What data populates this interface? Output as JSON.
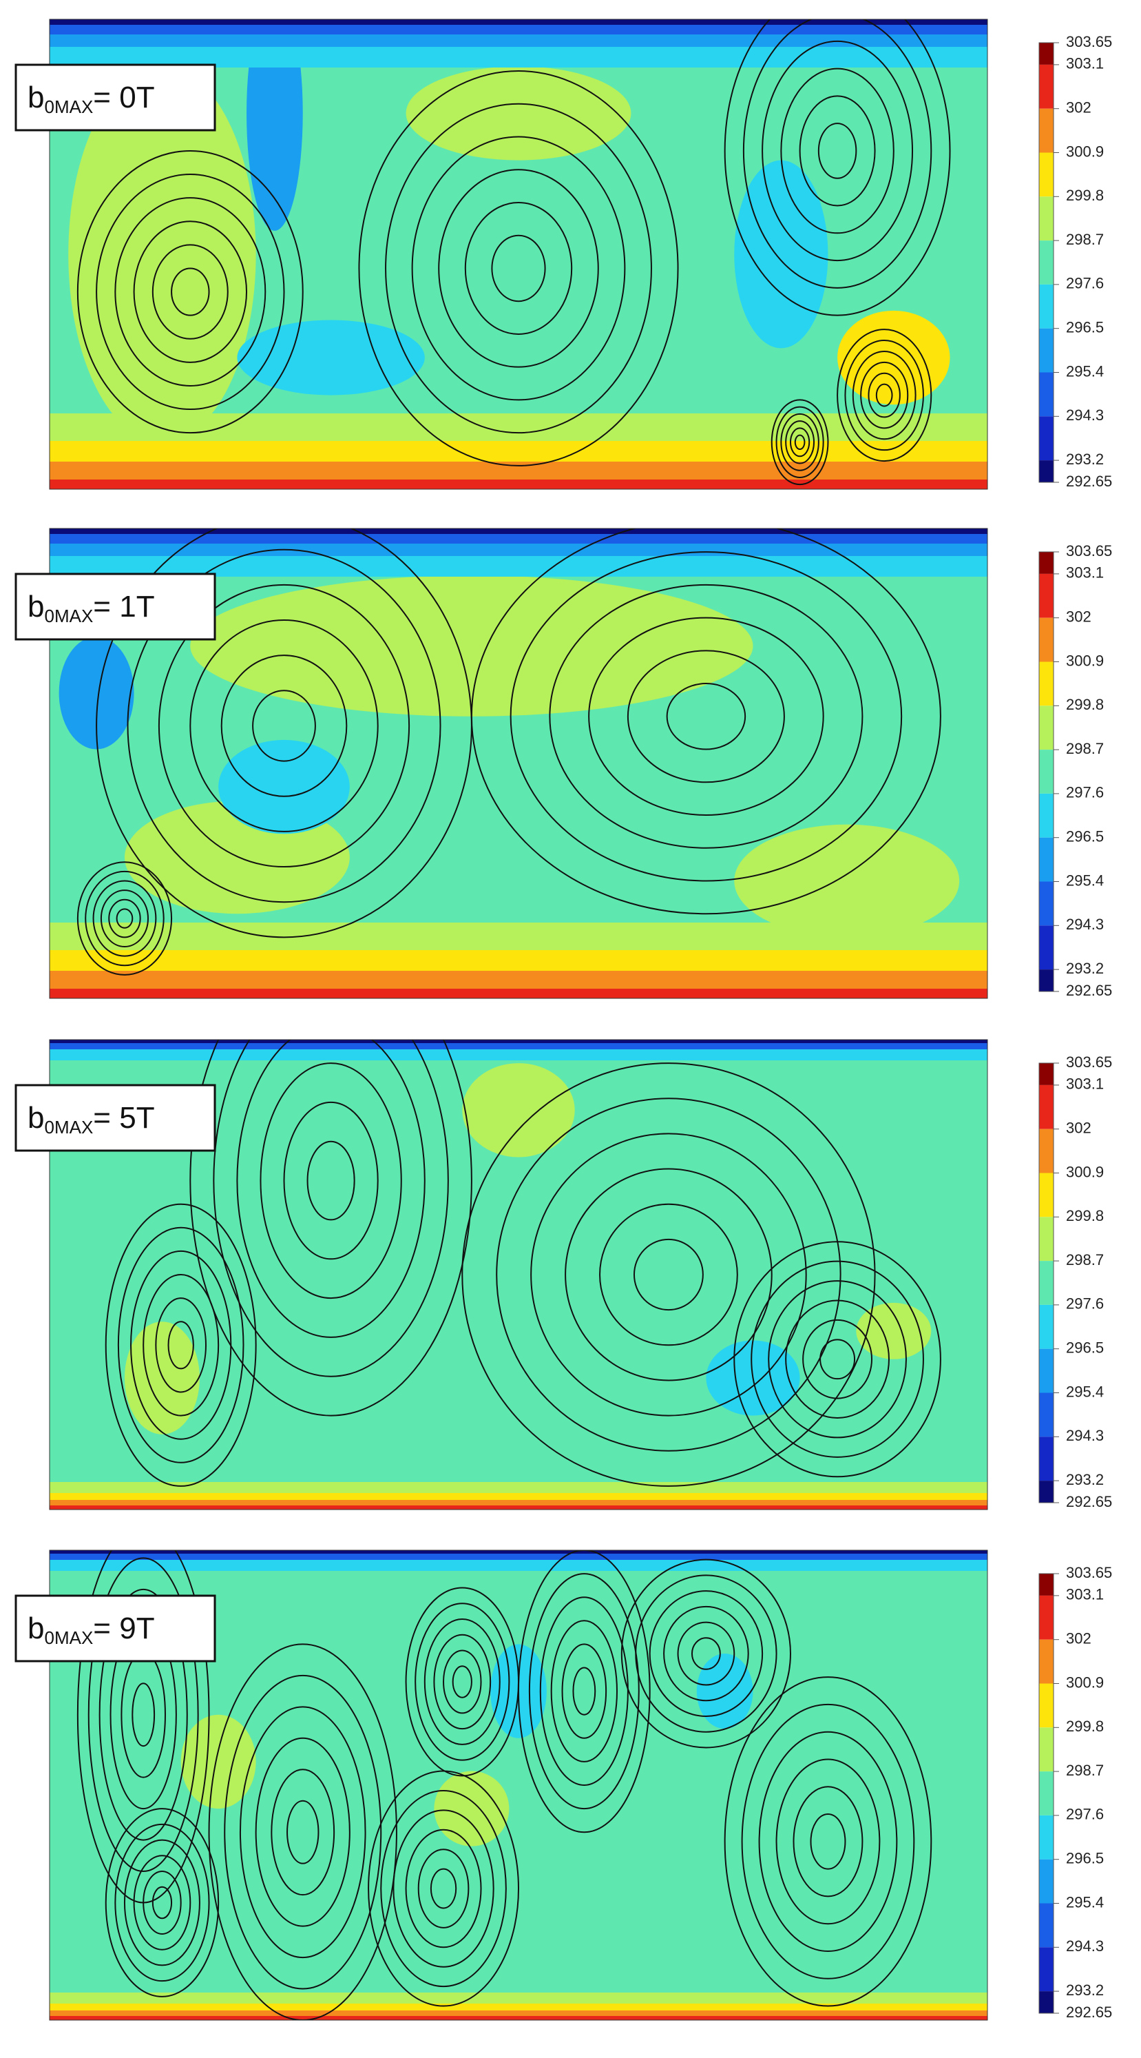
{
  "panels": [
    {
      "label_base": "b",
      "label_sub": "0MAX",
      "label_rest": "= 0T",
      "colorbar": {
        "ticks": [
          303.65,
          303.1,
          302,
          300.9,
          299.8,
          298.7,
          297.6,
          296.5,
          295.4,
          294.3,
          293.2,
          292.65
        ]
      }
    },
    {
      "label_base": "b",
      "label_sub": "0MAX",
      "label_rest": "= 1T",
      "colorbar": {
        "ticks": [
          303.65,
          303.1,
          302,
          300.9,
          299.8,
          298.7,
          297.6,
          296.5,
          295.4,
          294.3,
          293.2,
          292.65
        ]
      }
    },
    {
      "label_base": "b",
      "label_sub": "0MAX",
      "label_rest": "= 5T",
      "colorbar": {
        "ticks": [
          303.65,
          303.1,
          302,
          300.9,
          299.8,
          298.7,
          297.6,
          296.5,
          295.4,
          294.3,
          293.2,
          292.65
        ]
      }
    },
    {
      "label_base": "b",
      "label_sub": "0MAX",
      "label_rest": "= 9T",
      "colorbar": {
        "ticks": [
          303.65,
          303.1,
          302,
          300.9,
          299.8,
          298.7,
          297.6,
          296.5,
          295.4,
          294.3,
          293.2,
          292.65
        ]
      }
    }
  ],
  "colorbar_colors": [
    "#8b0000",
    "#e8261a",
    "#f58a1e",
    "#fde40b",
    "#b6f05a",
    "#5ee8b0",
    "#28d4f0",
    "#1a9ef0",
    "#1a5ee8",
    "#1428c8",
    "#0a0a78"
  ]
}
